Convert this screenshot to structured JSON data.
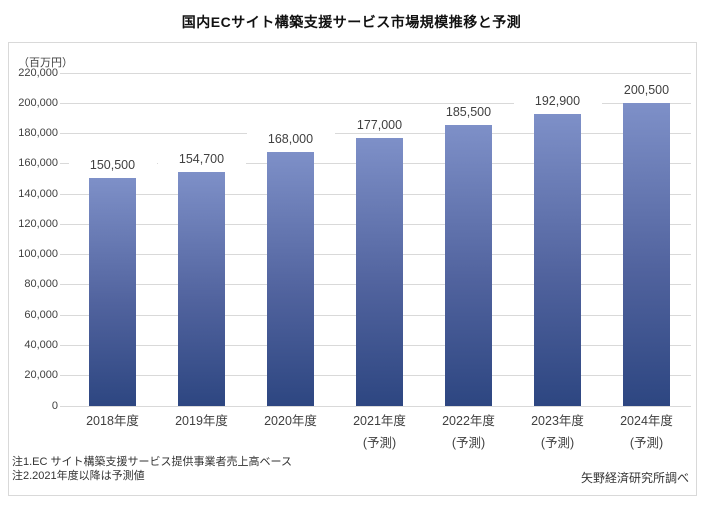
{
  "title": "国内ECサイト構築支援サービス市場規模推移と予測",
  "unit_label": "（百万円）",
  "footnotes": [
    "注1.EC サイト構築支援サービス提供事業者売上高ベース",
    "注2.2021年度以降は予測値"
  ],
  "source": "矢野経済研究所調べ",
  "colors": {
    "bar_gradient_top": "#7e90c8",
    "bar_gradient_bottom": "#2d4681",
    "gridline": "#d9d9d9",
    "box_border": "#d9d9d9",
    "text": "#404040"
  },
  "chart_data": {
    "type": "bar",
    "title": "国内ECサイト構築支援サービス市場規模推移と予測",
    "ylabel": "（百万円）",
    "xlabel": "",
    "categories": [
      "2018年度",
      "2019年度",
      "2020年度",
      "2021年度",
      "2022年度",
      "2023年度",
      "2024年度"
    ],
    "category_notes": [
      "",
      "",
      "",
      "(予測)",
      "(予測)",
      "(予測)",
      "(予測)"
    ],
    "values": [
      150500,
      154700,
      168000,
      177000,
      185500,
      192900,
      200500
    ],
    "value_labels": [
      "150,500",
      "154,700",
      "168,000",
      "177,000",
      "185,500",
      "192,900",
      "200,500"
    ],
    "ylim": [
      0,
      220000
    ],
    "ytick_step": 20000,
    "grid": "horizontal",
    "legend": "none"
  }
}
